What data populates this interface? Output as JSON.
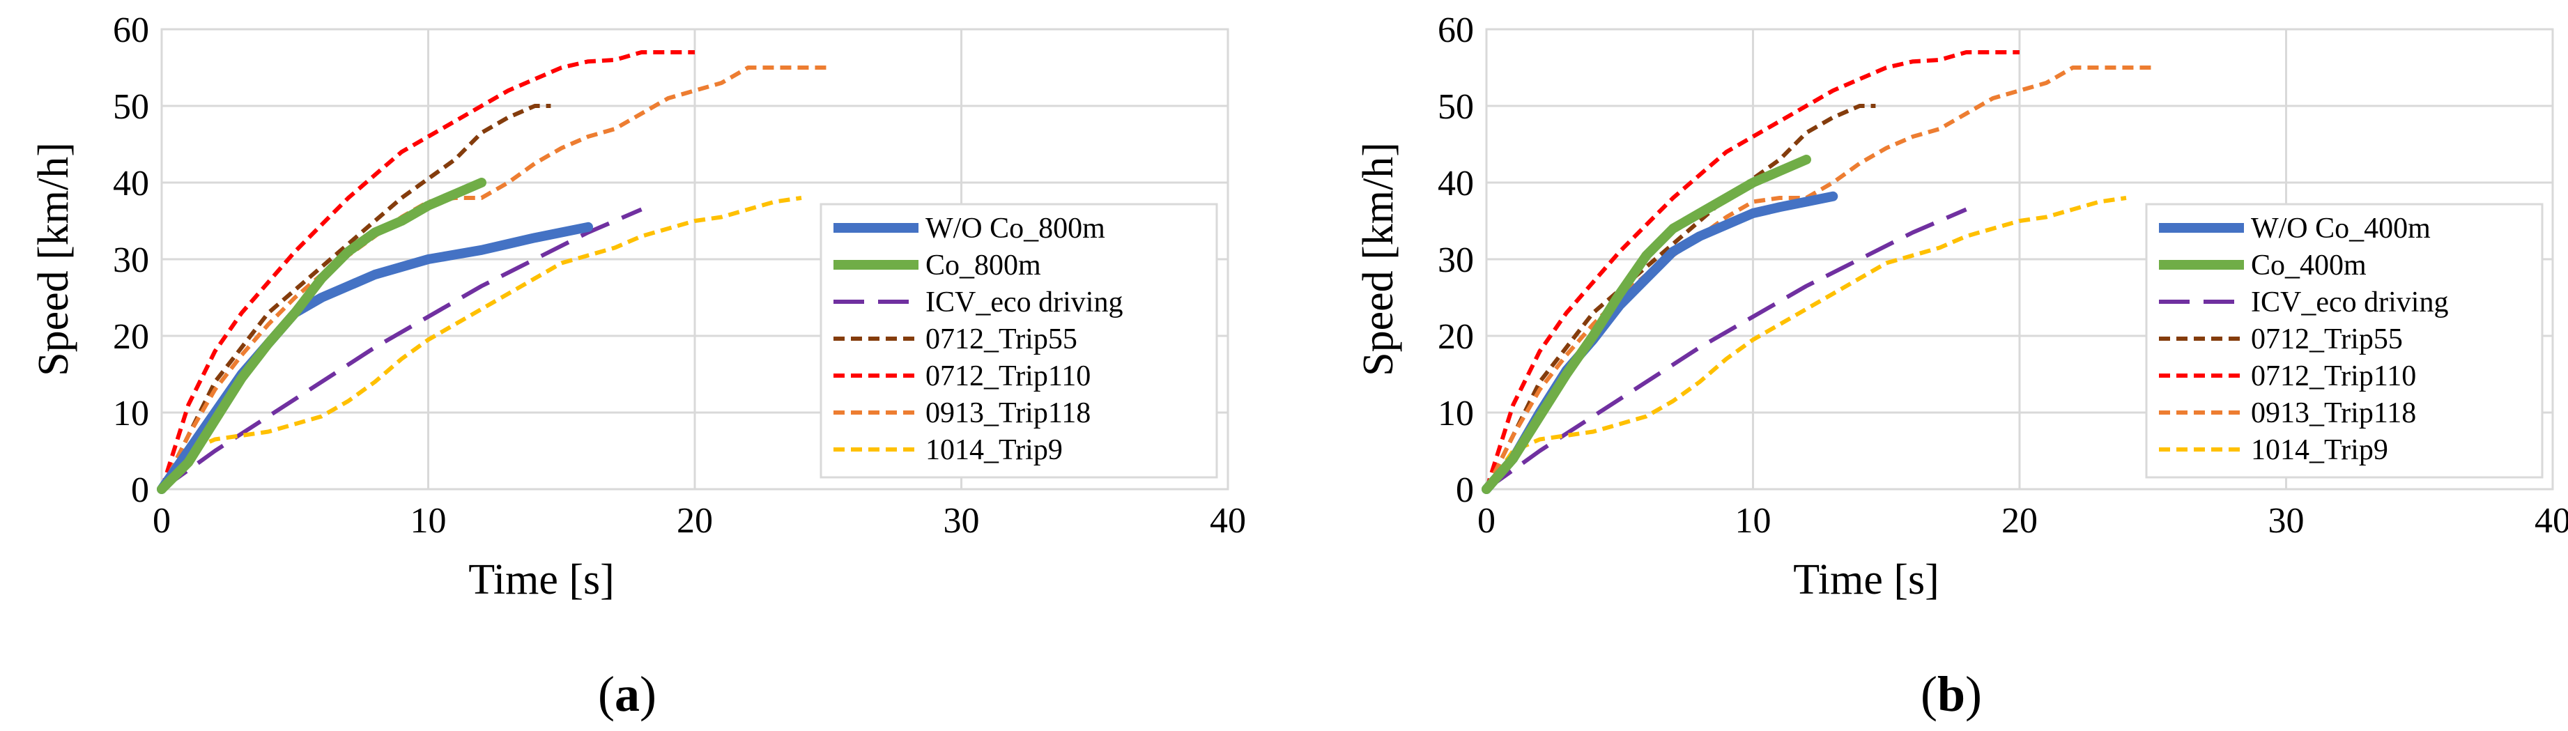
{
  "figure": {
    "colors": {
      "wo_co": "#4472C4",
      "co": "#70AD47",
      "icv": "#7030A0",
      "trip55": "#843C0C",
      "trip110": "#FF0000",
      "trip118": "#ED7D31",
      "trip9": "#FFC000",
      "grid": "#d9d9d9"
    }
  },
  "chart_data": [
    {
      "type": "line",
      "panel_label": "a",
      "xlabel": "Time  [s]",
      "ylabel": "Speed  [km/h]",
      "xlim": [
        0,
        40
      ],
      "ylim": [
        0,
        60
      ],
      "xticks": [
        "0",
        "10",
        "20",
        "30",
        "40"
      ],
      "yticks": [
        "0",
        "10",
        "20",
        "30",
        "40",
        "50",
        "60"
      ],
      "grid": true,
      "legend_position": "right",
      "series": [
        {
          "name": "W/O Co_800m",
          "color": "#4472C4",
          "style": "solid",
          "width": 14,
          "x": [
            0,
            1,
            2,
            3,
            4,
            5,
            6,
            7,
            8,
            9,
            10,
            11,
            12,
            13,
            14,
            15,
            16
          ],
          "y": [
            0,
            5,
            10,
            15,
            19,
            23,
            25,
            26.5,
            28,
            29,
            30,
            30.6,
            31.2,
            32,
            32.8,
            33.5,
            34.2
          ]
        },
        {
          "name": "Co_800m",
          "color": "#70AD47",
          "style": "solid",
          "width": 14,
          "x": [
            0,
            1,
            2,
            3,
            4,
            5,
            6,
            7,
            8,
            9,
            10,
            11,
            12
          ],
          "y": [
            0,
            3.5,
            9,
            14.5,
            19,
            23,
            27.5,
            31,
            33.5,
            35,
            37,
            38.5,
            40
          ]
        },
        {
          "name": "ICV_eco driving",
          "color": "#7030A0",
          "style": "longdash",
          "width": 6,
          "x": [
            0,
            1,
            2,
            4,
            6,
            8,
            10,
            12,
            14,
            16,
            18
          ],
          "y": [
            0,
            2.5,
            5,
            9.5,
            14,
            18.5,
            22.5,
            26.5,
            30,
            33.5,
            36.5
          ]
        },
        {
          "name": "0712_Trip55",
          "color": "#843C0C",
          "style": "dash",
          "width": 6,
          "x": [
            0,
            1,
            2,
            3,
            4,
            5,
            6,
            7,
            8,
            9,
            10,
            11,
            12,
            13,
            14,
            14.6
          ],
          "y": [
            0,
            7,
            14,
            18.5,
            23,
            26,
            29,
            32,
            35,
            38,
            40.5,
            43,
            46.5,
            48.5,
            50,
            50
          ]
        },
        {
          "name": "0712_Trip110",
          "color": "#FF0000",
          "style": "dash",
          "width": 6,
          "x": [
            0,
            1,
            2,
            3,
            4,
            5,
            6,
            7,
            8,
            9,
            10,
            11,
            12,
            13,
            14,
            15,
            16,
            17,
            18,
            19,
            20
          ],
          "y": [
            0,
            11,
            18,
            23,
            27,
            31,
            34.5,
            38,
            41,
            44,
            46,
            48,
            50,
            52,
            53.5,
            55,
            55.8,
            56,
            57,
            57,
            57
          ]
        },
        {
          "name": "0913_Trip118",
          "color": "#ED7D31",
          "style": "dash",
          "width": 6,
          "x": [
            0,
            1,
            2,
            3,
            4,
            5,
            6,
            7,
            8,
            9,
            10,
            11,
            12,
            13,
            14,
            15,
            16,
            17,
            18,
            19,
            20,
            21,
            22,
            23,
            24,
            25
          ],
          "y": [
            0,
            7,
            13,
            17.5,
            21.5,
            25,
            28,
            30.5,
            33,
            35.5,
            37.5,
            38,
            38,
            40,
            42.5,
            44.5,
            46,
            47,
            49,
            51,
            52,
            53,
            55,
            55,
            55,
            55
          ]
        },
        {
          "name": "1014_Trip9",
          "color": "#FFC000",
          "style": "dash",
          "width": 6,
          "x": [
            0,
            1,
            2,
            3,
            4,
            5,
            6,
            7,
            8,
            9,
            10,
            11,
            12,
            13,
            14,
            15,
            16,
            17,
            18,
            19,
            20,
            21,
            22,
            23,
            24
          ],
          "y": [
            0,
            5,
            6.5,
            7,
            7.5,
            8.5,
            9.5,
            11.5,
            14,
            17,
            19.5,
            21.5,
            23.5,
            25.5,
            27.5,
            29.5,
            30.5,
            31.5,
            33,
            34,
            35,
            35.5,
            36.5,
            37.5,
            38
          ]
        }
      ]
    },
    {
      "type": "line",
      "panel_label": "b",
      "xlabel": "Time  [s]",
      "ylabel": "Speed  [km/h]",
      "xlim": [
        0,
        40
      ],
      "ylim": [
        0,
        60
      ],
      "xticks": [
        "0",
        "10",
        "20",
        "30",
        "40"
      ],
      "yticks": [
        "0",
        "10",
        "20",
        "30",
        "40",
        "50",
        "60"
      ],
      "grid": true,
      "legend_position": "right",
      "series": [
        {
          "name": "W/O Co_400m",
          "color": "#4472C4",
          "style": "solid",
          "width": 14,
          "x": [
            0,
            1,
            2,
            3,
            4,
            5,
            6,
            7,
            8,
            9,
            10,
            11,
            12,
            13
          ],
          "y": [
            0,
            4,
            10,
            15.5,
            19.5,
            24,
            27.5,
            31,
            33,
            34.5,
            36,
            36.8,
            37.5,
            38.2
          ]
        },
        {
          "name": "Co_400m",
          "color": "#70AD47",
          "style": "solid",
          "width": 14,
          "x": [
            0,
            1,
            2,
            3,
            4,
            5,
            6,
            7,
            8,
            9,
            10,
            11,
            12
          ],
          "y": [
            0,
            4,
            9.5,
            15,
            20,
            25.5,
            30.5,
            34,
            36,
            38,
            40,
            41.5,
            43
          ]
        },
        {
          "name": "ICV_eco driving",
          "color": "#7030A0",
          "style": "longdash",
          "width": 6,
          "x": [
            0,
            1,
            2,
            4,
            6,
            8,
            10,
            12,
            14,
            16,
            18
          ],
          "y": [
            0,
            2.5,
            5,
            9.5,
            14,
            18.5,
            22.5,
            26.5,
            30,
            33.5,
            36.5
          ]
        },
        {
          "name": "0712_Trip55",
          "color": "#843C0C",
          "style": "dash",
          "width": 6,
          "x": [
            0,
            1,
            2,
            3,
            4,
            5,
            6,
            7,
            8,
            9,
            10,
            11,
            12,
            13,
            14,
            14.6
          ],
          "y": [
            0,
            7,
            14,
            18.5,
            23,
            26,
            29,
            32,
            35,
            38,
            40.5,
            43,
            46.5,
            48.5,
            50,
            50
          ]
        },
        {
          "name": "0712_Trip110",
          "color": "#FF0000",
          "style": "dash",
          "width": 6,
          "x": [
            0,
            1,
            2,
            3,
            4,
            5,
            6,
            7,
            8,
            9,
            10,
            11,
            12,
            13,
            14,
            15,
            16,
            17,
            18,
            19,
            20
          ],
          "y": [
            0,
            11,
            18,
            23,
            27,
            31,
            34.5,
            38,
            41,
            44,
            46,
            48,
            50,
            52,
            53.5,
            55,
            55.8,
            56,
            57,
            57,
            57
          ]
        },
        {
          "name": "0913_Trip118",
          "color": "#ED7D31",
          "style": "dash",
          "width": 6,
          "x": [
            0,
            1,
            2,
            3,
            4,
            5,
            6,
            7,
            8,
            9,
            10,
            11,
            12,
            13,
            14,
            15,
            16,
            17,
            18,
            19,
            20,
            21,
            22,
            23,
            24,
            25
          ],
          "y": [
            0,
            7,
            13,
            17.5,
            21.5,
            25,
            28,
            30.5,
            33,
            35.5,
            37.5,
            38,
            38,
            40,
            42.5,
            44.5,
            46,
            47,
            49,
            51,
            52,
            53,
            55,
            55,
            55,
            55
          ]
        },
        {
          "name": "1014_Trip9",
          "color": "#FFC000",
          "style": "dash",
          "width": 6,
          "x": [
            0,
            1,
            2,
            3,
            4,
            5,
            6,
            7,
            8,
            9,
            10,
            11,
            12,
            13,
            14,
            15,
            16,
            17,
            18,
            19,
            20,
            21,
            22,
            23,
            24
          ],
          "y": [
            0,
            5,
            6.5,
            7,
            7.5,
            8.5,
            9.5,
            11.5,
            14,
            17,
            19.5,
            21.5,
            23.5,
            25.5,
            27.5,
            29.5,
            30.5,
            31.5,
            33,
            34,
            35,
            35.5,
            36.5,
            37.5,
            38
          ]
        }
      ]
    }
  ]
}
